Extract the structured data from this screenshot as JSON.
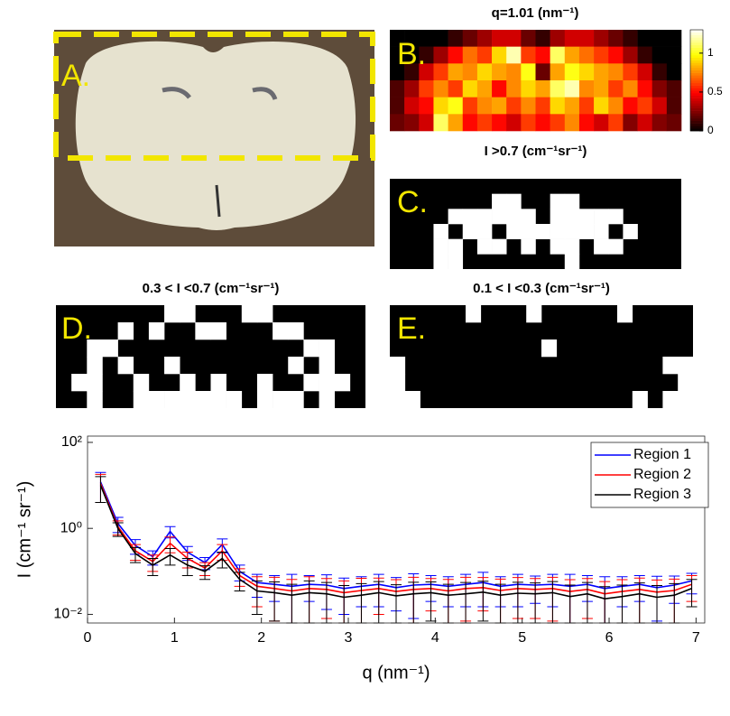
{
  "photo": {
    "label": "A."
  },
  "chart_data": [
    {
      "type": "heatmap",
      "panel": "B.",
      "title": "q=1.01 (nm⁻¹)",
      "colormap": "hot",
      "clim": [
        0,
        1.3
      ],
      "colorbar_ticks": [
        0,
        0.5,
        1
      ],
      "values": [
        [
          0,
          0,
          0,
          0,
          0.1,
          0.2,
          0.3,
          0.4,
          0.4,
          0.2,
          0.1,
          0.3,
          0.4,
          0.4,
          0.3,
          0.2,
          0.1,
          0,
          0,
          0
        ],
        [
          0,
          0,
          0.1,
          0.3,
          0.5,
          0.7,
          0.6,
          0.9,
          1.2,
          0.6,
          0.5,
          1.1,
          0.8,
          0.7,
          0.6,
          0.5,
          0.3,
          0.1,
          0,
          0
        ],
        [
          0,
          0.1,
          0.4,
          0.6,
          0.8,
          0.75,
          0.9,
          0.8,
          0.75,
          1.0,
          0.2,
          0.8,
          1.0,
          0.9,
          0.8,
          0.75,
          0.6,
          0.4,
          0.1,
          0
        ],
        [
          0.15,
          0.3,
          0.6,
          0.75,
          0.6,
          0.9,
          0.8,
          0.5,
          0.75,
          0.9,
          0.8,
          1.1,
          1.2,
          0.75,
          0.8,
          0.6,
          0.75,
          0.5,
          0.25,
          0.15
        ],
        [
          0.15,
          0.4,
          0.5,
          0.9,
          1.0,
          0.6,
          0.75,
          0.8,
          0.6,
          0.75,
          0.6,
          0.9,
          0.8,
          0.6,
          0.9,
          0.75,
          0.5,
          0.6,
          0.4,
          0.15
        ],
        [
          0.2,
          0.25,
          0.4,
          1.1,
          0.8,
          0.5,
          0.6,
          0.5,
          0.4,
          0.6,
          0.5,
          0.6,
          0.75,
          0.5,
          0.4,
          0.6,
          0.25,
          0.4,
          0.25,
          0.2
        ]
      ],
      "masks": [
        {
          "panel": "C.",
          "title": "I >0.7 (cm⁻¹sr⁻¹)",
          "min": 0.7
        },
        {
          "panel": "D.",
          "title": "0.3 < I <0.7 (cm⁻¹sr⁻¹)",
          "min": 0.3,
          "max": 0.7
        },
        {
          "panel": "E.",
          "title": "0.1 < I <0.3 (cm⁻¹sr⁻¹)",
          "min": 0.1,
          "max": 0.3
        }
      ]
    },
    {
      "type": "line",
      "x_label": "q (nm⁻¹)",
      "y_label": "I (cm⁻¹ sr⁻¹)",
      "log_y": true,
      "legend": "upper right",
      "xlim": [
        0,
        7.1
      ],
      "xticks": [
        0,
        1,
        2,
        3,
        4,
        5,
        6,
        7
      ],
      "ylim": [
        0.0063,
        140
      ],
      "yticks": [
        {
          "value": 0.01,
          "label": "10⁻²"
        },
        {
          "value": 1,
          "label": "10⁰"
        },
        {
          "value": 100,
          "label": "10²"
        }
      ],
      "x": [
        0.15,
        0.35,
        0.55,
        0.75,
        0.95,
        1.15,
        1.35,
        1.55,
        1.75,
        1.95,
        2.15,
        2.35,
        2.55,
        2.75,
        2.95,
        3.15,
        3.35,
        3.55,
        3.75,
        3.95,
        4.15,
        4.35,
        4.55,
        4.75,
        4.95,
        5.15,
        5.35,
        5.55,
        5.75,
        5.95,
        6.15,
        6.35,
        6.55,
        6.75,
        6.95
      ],
      "series": [
        {
          "name": "Region 1",
          "color": "#0000ff",
          "values": [
            12,
            1.3,
            0.4,
            0.22,
            0.85,
            0.28,
            0.16,
            0.42,
            0.1,
            0.055,
            0.05,
            0.045,
            0.05,
            0.048,
            0.04,
            0.045,
            0.05,
            0.042,
            0.048,
            0.05,
            0.045,
            0.05,
            0.055,
            0.045,
            0.05,
            0.048,
            0.05,
            0.045,
            0.05,
            0.04,
            0.045,
            0.05,
            0.042,
            0.048,
            0.06
          ],
          "errors": [
            8,
            0.5,
            0.15,
            0.08,
            0.25,
            0.1,
            0.05,
            0.15,
            0.04,
            0.03,
            0.03,
            0.04,
            0.03,
            0.035,
            0.03,
            0.03,
            0.035,
            0.03,
            0.04,
            0.03,
            0.03,
            0.035,
            0.04,
            0.03,
            0.035,
            0.03,
            0.035,
            0.04,
            0.03,
            0.035,
            0.03,
            0.03,
            0.035,
            0.03,
            0.03
          ]
        },
        {
          "name": "Region 2",
          "color": "#ff0000",
          "values": [
            11,
            1.1,
            0.3,
            0.17,
            0.45,
            0.2,
            0.12,
            0.3,
            0.08,
            0.045,
            0.04,
            0.035,
            0.04,
            0.038,
            0.032,
            0.036,
            0.04,
            0.034,
            0.038,
            0.04,
            0.035,
            0.04,
            0.042,
            0.036,
            0.04,
            0.038,
            0.04,
            0.034,
            0.038,
            0.03,
            0.034,
            0.038,
            0.033,
            0.036,
            0.05
          ],
          "errors": [
            7,
            0.4,
            0.12,
            0.07,
            0.18,
            0.08,
            0.04,
            0.12,
            0.035,
            0.03,
            0.033,
            0.03,
            0.035,
            0.03,
            0.028,
            0.033,
            0.03,
            0.03,
            0.035,
            0.028,
            0.03,
            0.033,
            0.03,
            0.03,
            0.032,
            0.03,
            0.033,
            0.03,
            0.03,
            0.028,
            0.03,
            0.032,
            0.03,
            0.03,
            0.03
          ]
        },
        {
          "name": "Region 3",
          "color": "#000000",
          "values": [
            10,
            1.0,
            0.26,
            0.14,
            0.24,
            0.14,
            0.1,
            0.2,
            0.065,
            0.035,
            0.032,
            0.028,
            0.032,
            0.03,
            0.025,
            0.028,
            0.032,
            0.027,
            0.03,
            0.032,
            0.028,
            0.03,
            0.033,
            0.028,
            0.031,
            0.03,
            0.032,
            0.026,
            0.03,
            0.023,
            0.026,
            0.03,
            0.025,
            0.028,
            0.04
          ],
          "errors": [
            6,
            0.35,
            0.1,
            0.06,
            0.1,
            0.06,
            0.035,
            0.08,
            0.03,
            0.025,
            0.025,
            0.022,
            0.028,
            0.025,
            0.022,
            0.024,
            0.026,
            0.022,
            0.026,
            0.025,
            0.022,
            0.025,
            0.026,
            0.022,
            0.025,
            0.024,
            0.026,
            0.022,
            0.025,
            0.021,
            0.022,
            0.024,
            0.022,
            0.024,
            0.025
          ]
        }
      ]
    }
  ]
}
